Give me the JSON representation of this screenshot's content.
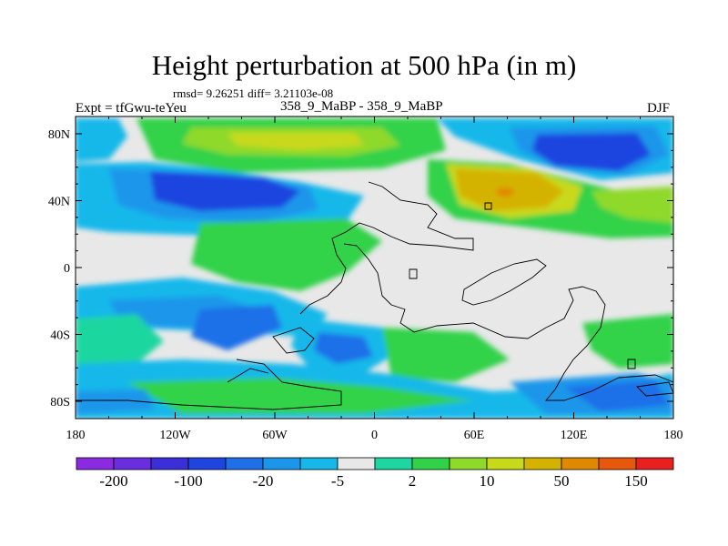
{
  "title": "Height perturbation at 500 hPa (in m)",
  "stats": "rmsd= 9.26251 diff= 3.21103e-08",
  "left_label": "Expt = tfGwu-teYeu",
  "center_label": "358_9_MaBP - 358_9_MaBP",
  "right_label": "DJF",
  "axes": {
    "x_ticks": [
      "180",
      "120W",
      "60W",
      "0",
      "60E",
      "120E",
      "180"
    ],
    "y_ticks": [
      "80N",
      "40N",
      "0",
      "40S",
      "80S"
    ]
  },
  "colorbar": {
    "colors": [
      "#8a2be2",
      "#6a2ee0",
      "#3a2fd8",
      "#1f44e0",
      "#1f6fe8",
      "#1c96ea",
      "#16b8ea",
      "#e8e8e8",
      "#1ed6a0",
      "#31d24a",
      "#8fd92a",
      "#c8d91a",
      "#d4b300",
      "#e08800",
      "#e8580a",
      "#e82020"
    ],
    "labels": [
      "-200",
      "-100",
      "-20",
      "-5",
      "2",
      "10",
      "50",
      "150"
    ]
  }
}
